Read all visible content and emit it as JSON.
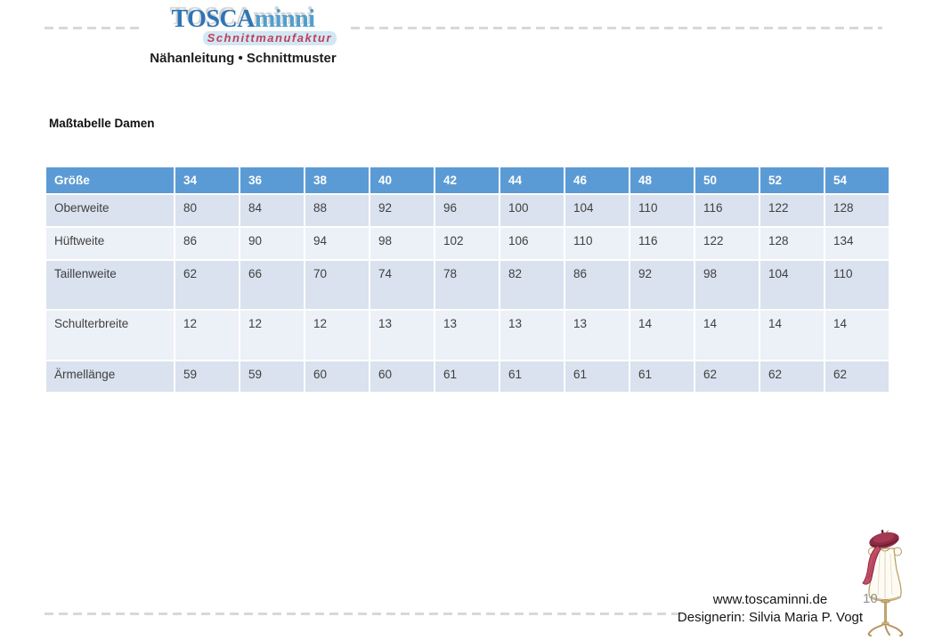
{
  "logo": {
    "brand_primary": "TOSCA",
    "brand_secondary": "minni",
    "tagline": "Schnittmanufaktur",
    "subtitle": "Nähanleitung • Schnittmuster"
  },
  "heading": "Maßtabelle Damen",
  "table": {
    "header": [
      "Größe",
      "34",
      "36",
      "38",
      "40",
      "42",
      "44",
      "46",
      "48",
      "50",
      "52",
      "54"
    ],
    "rows": [
      {
        "label": "Oberweite",
        "values": [
          "80",
          "84",
          "88",
          "92",
          "96",
          "100",
          "104",
          "110",
          "116",
          "122",
          "128"
        ]
      },
      {
        "label": "Hüftweite",
        "values": [
          "86",
          "90",
          "94",
          "98",
          "102",
          "106",
          "110",
          "116",
          "122",
          "128",
          "134"
        ]
      },
      {
        "label": "Taillenweite",
        "values": [
          "62",
          "66",
          "70",
          "74",
          "78",
          "82",
          "86",
          "92",
          "98",
          "104",
          "110"
        ]
      },
      {
        "label": "Schulterbreite",
        "values": [
          "12",
          "12",
          "12",
          "13",
          "13",
          "13",
          "13",
          "14",
          "14",
          "14",
          "14"
        ]
      },
      {
        "label": "Ärmellänge",
        "values": [
          "59",
          "59",
          "60",
          "60",
          "61",
          "61",
          "61",
          "61",
          "62",
          "62",
          "62"
        ]
      }
    ]
  },
  "footer": {
    "website": "www.toscaminni.de",
    "designer": "Designerin: Silvia Maria P. Vogt",
    "page_number": "10"
  },
  "illustration": {
    "name": "dress-form-mannequin"
  },
  "colors": {
    "table_header_blue": "#5b9bd5",
    "band_dark": "#d9e2ee",
    "band_light": "#ecf0f7",
    "logo_blue_dark": "#2e75b6",
    "logo_blue_light": "#4f9fce",
    "tagline_red": "#c0405c",
    "tagline_highlight": "#d2e7f4",
    "dash_gray": "#d8d8d8",
    "page_number_gray": "#8f8f8f"
  }
}
